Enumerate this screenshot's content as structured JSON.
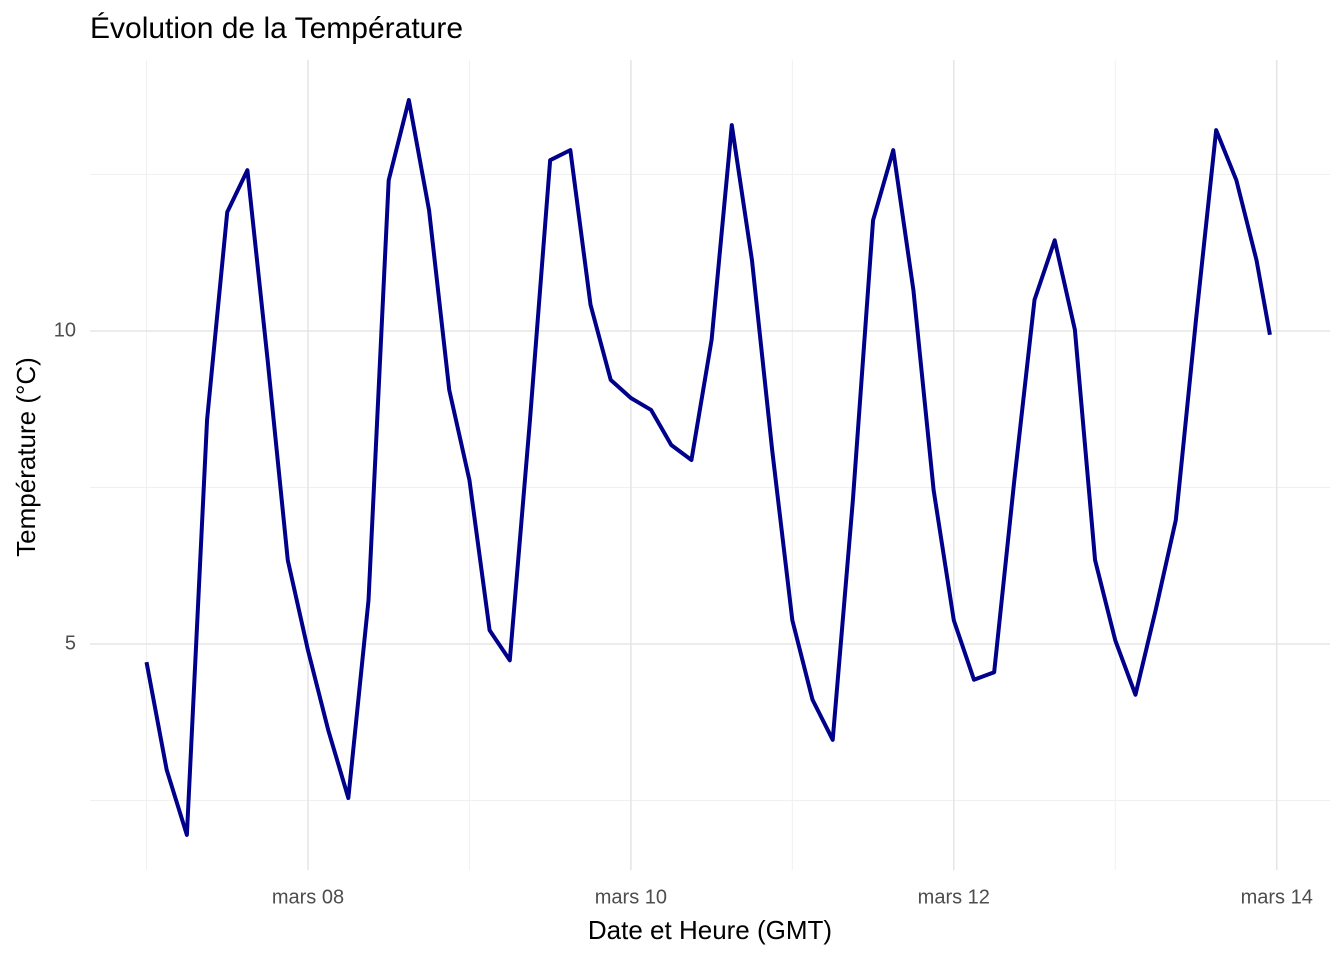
{
  "chart_data": {
    "type": "line",
    "title": "Évolution de la Température",
    "x_label": "Date et Heure (GMT)",
    "y_label": "Température (°C)",
    "x": [
      7,
      7.125,
      7.25,
      7.375,
      7.5,
      7.625,
      7.75,
      7.875,
      8,
      8.125,
      8.25,
      8.375,
      8.5,
      8.625,
      8.75,
      8.875,
      9,
      9.125,
      9.25,
      9.375,
      9.5,
      9.625,
      9.75,
      9.875,
      10,
      10.125,
      10.25,
      10.375,
      10.5,
      10.625,
      10.75,
      10.875,
      11,
      11.125,
      11.25,
      11.375,
      11.5,
      11.625,
      11.75,
      11.875,
      12,
      12.125,
      12.25,
      12.375,
      12.5,
      12.625,
      12.75,
      12.875,
      13,
      13.125,
      13.25,
      13.375,
      13.5,
      13.625,
      13.75,
      13.875,
      13.958
    ],
    "series": [
      {
        "name": "Température",
        "color": "#00008b",
        "values": [
          4.71,
          2.99,
          1.95,
          8.58,
          11.9,
          12.57,
          9.54,
          6.34,
          4.9,
          3.63,
          2.54,
          5.7,
          12.41,
          13.69,
          11.93,
          9.06,
          7.62,
          5.22,
          4.74,
          8.58,
          12.73,
          12.89,
          10.42,
          9.22,
          8.93,
          8.74,
          8.18,
          7.94,
          9.86,
          13.29,
          11.13,
          8.1,
          5.38,
          4.11,
          3.47,
          7.3,
          11.77,
          12.89,
          10.65,
          7.46,
          5.38,
          4.43,
          4.55,
          7.62,
          10.5,
          11.45,
          10.02,
          6.34,
          5.06,
          4.19,
          5.54,
          6.98,
          10.18,
          13.21,
          12.41,
          11.13,
          9.94
        ]
      }
    ],
    "xlim": [
      6.65,
      14.33
    ],
    "xticks": [
      {
        "value": 8,
        "label": "mars 08"
      },
      {
        "value": 10,
        "label": "mars 10"
      },
      {
        "value": 12,
        "label": "mars 12"
      },
      {
        "value": 14,
        "label": "mars 14"
      }
    ],
    "x_minor_grid": [
      7,
      9,
      11,
      13
    ],
    "ylim": [
      1.39,
      14.33
    ],
    "yticks": [
      5,
      10
    ],
    "y_minor_grid": [
      2.5,
      7.5,
      12.5
    ],
    "grid": true
  }
}
